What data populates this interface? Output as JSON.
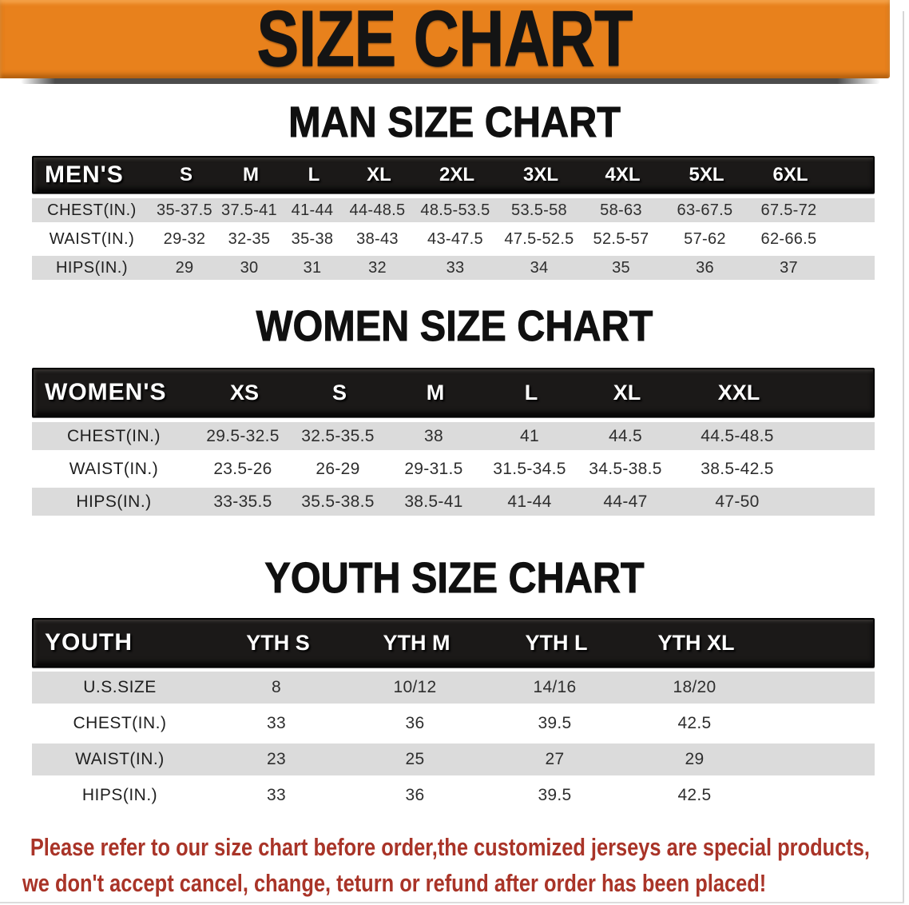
{
  "page": {
    "banner_title": "SIZE CHART"
  },
  "colors": {
    "banner_bg": "#E8811C",
    "header_bar_bg": "#1B1918",
    "row_alt_gray": "#DBDBDB",
    "disclaimer_red": "#A93428"
  },
  "sections": [
    {
      "id": "men",
      "title": "MAN SIZE CHART",
      "header_label": "MEN'S",
      "sizes": [
        "S",
        "M",
        "L",
        "XL",
        "2XL",
        "3XL",
        "4XL",
        "5XL",
        "6XL"
      ],
      "rows": [
        {
          "label": "CHEST(IN.)",
          "values": [
            "35-37.5",
            "37.5-41",
            "41-44",
            "44-48.5",
            "48.5-53.5",
            "53.5-58",
            "58-63",
            "63-67.5",
            "67.5-72"
          ]
        },
        {
          "label": "WAIST(IN.)",
          "values": [
            "29-32",
            "32-35",
            "35-38",
            "38-43",
            "43-47.5",
            "47.5-52.5",
            "52.5-57",
            "57-62",
            "62-66.5"
          ]
        },
        {
          "label": "HIPS(IN.)",
          "values": [
            "29",
            "30",
            "31",
            "32",
            "33",
            "34",
            "35",
            "36",
            "37"
          ]
        }
      ]
    },
    {
      "id": "women",
      "title": "WOMEN SIZE CHART",
      "header_label": "WOMEN'S",
      "sizes": [
        "XS",
        "S",
        "M",
        "L",
        "XL",
        "XXL"
      ],
      "rows": [
        {
          "label": "CHEST(IN.)",
          "values": [
            "29.5-32.5",
            "32.5-35.5",
            "38",
            "41",
            "44.5",
            "44.5-48.5"
          ]
        },
        {
          "label": "WAIST(IN.)",
          "values": [
            "23.5-26",
            "26-29",
            "29-31.5",
            "31.5-34.5",
            "34.5-38.5",
            "38.5-42.5"
          ]
        },
        {
          "label": "HIPS(IN.)",
          "values": [
            "33-35.5",
            "35.5-38.5",
            "38.5-41",
            "41-44",
            "44-47",
            "47-50"
          ]
        }
      ]
    },
    {
      "id": "youth",
      "title": "YOUTH SIZE CHART",
      "header_label": "YOUTH",
      "sizes": [
        "YTH S",
        "YTH M",
        "YTH L",
        "YTH XL"
      ],
      "rows": [
        {
          "label": "U.S.SIZE",
          "values": [
            "8",
            "10/12",
            "14/16",
            "18/20"
          ]
        },
        {
          "label": "CHEST(IN.)",
          "values": [
            "33",
            "36",
            "39.5",
            "42.5"
          ]
        },
        {
          "label": "WAIST(IN.)",
          "values": [
            "23",
            "25",
            "27",
            "29"
          ]
        },
        {
          "label": "HIPS(IN.)",
          "values": [
            "33",
            "36",
            "39.5",
            "42.5"
          ]
        }
      ]
    }
  ],
  "disclaimer": {
    "lines": [
      "Please refer to our size chart before order,the customized jerseys are special products,",
      "we don't accept cancel, change, teturn or refund after order has been placed!"
    ]
  }
}
